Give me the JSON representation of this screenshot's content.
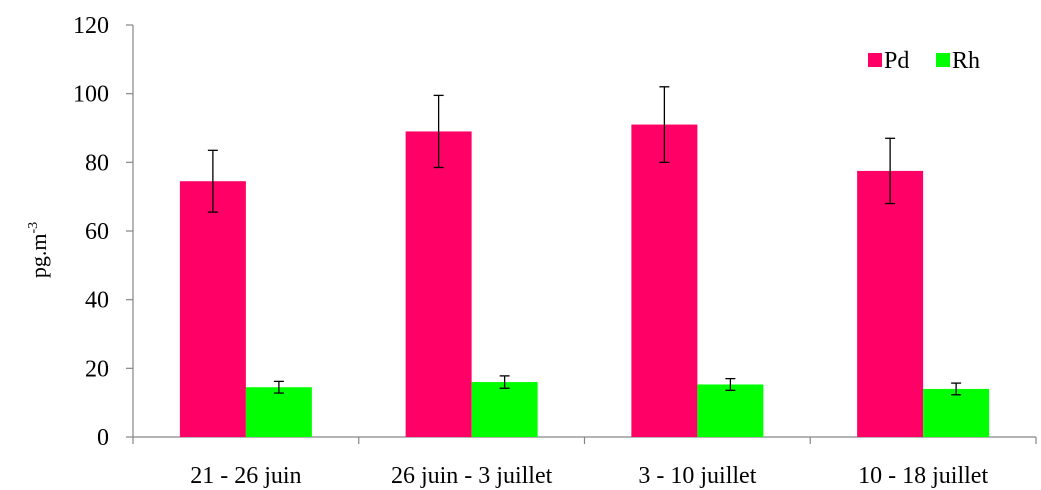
{
  "chart_data": {
    "type": "bar",
    "title": "",
    "xlabel": "",
    "ylabel": "pg.m",
    "ylabel_superscript": "-3",
    "ylim": [
      0,
      120
    ],
    "yticks": [
      "0",
      "20",
      "40",
      "60",
      "80",
      "100",
      "120"
    ],
    "grid": false,
    "legend_position": "top-right",
    "categories": [
      "21 - 26 juin",
      "26 juin - 3 juillet",
      "3 - 10 juillet",
      "10 - 18 juillet"
    ],
    "series": [
      {
        "name": "Pd",
        "color": "#ff0066",
        "values": [
          74.5,
          89.0,
          91.0,
          77.5
        ],
        "errors": [
          9.0,
          10.5,
          11.0,
          9.5
        ]
      },
      {
        "name": "Rh",
        "color": "#00ff00",
        "values": [
          14.5,
          16.0,
          15.3,
          14.0
        ],
        "errors": [
          1.7,
          1.8,
          1.7,
          1.7
        ]
      }
    ]
  }
}
